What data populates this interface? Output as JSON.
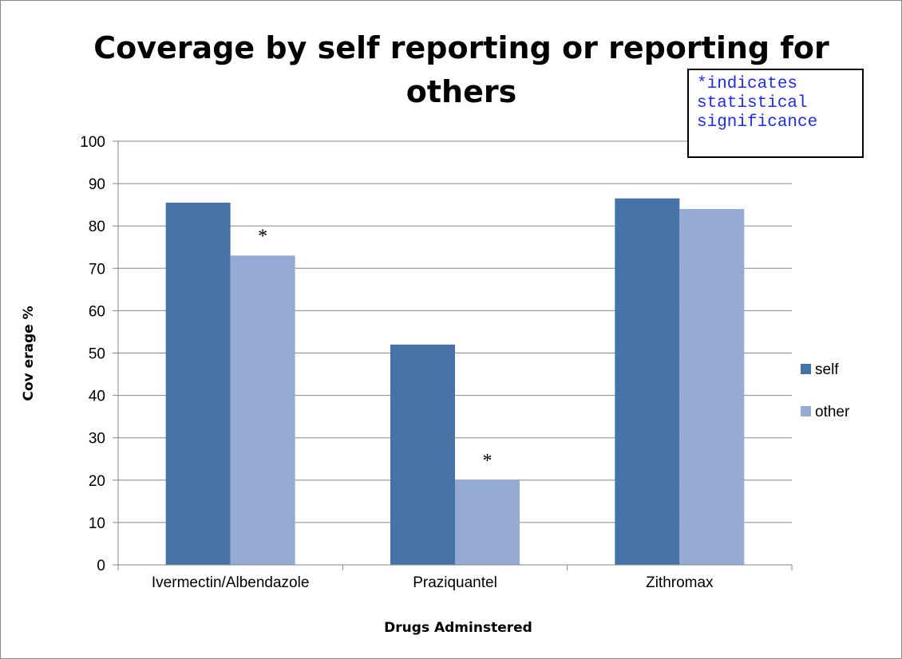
{
  "chart_data": {
    "type": "bar",
    "title_lines": [
      "Coverage by self reporting or reporting for",
      "others"
    ],
    "xlabel": "Drugs Adminstered",
    "ylabel": "Cov erage %",
    "categories": [
      "Ivermectin/Albendazole",
      "Praziquantel",
      "Zithromax"
    ],
    "series": [
      {
        "name": "self",
        "values": [
          85.5,
          52,
          86.5
        ],
        "color": "#4572a7"
      },
      {
        "name": "other",
        "values": [
          73,
          20,
          84
        ],
        "color": "#95abd3"
      }
    ],
    "ylim": [
      0,
      100
    ],
    "yticks": [
      0,
      10,
      20,
      30,
      40,
      50,
      60,
      70,
      80,
      90,
      100
    ],
    "grid": true,
    "legend_position": "right",
    "significance_marks": [
      {
        "category_index": 0,
        "series_index": 1,
        "label": "*"
      },
      {
        "category_index": 1,
        "series_index": 1,
        "label": "*"
      }
    ],
    "annotation": "*indicates\nstatistical\nsignificance"
  }
}
